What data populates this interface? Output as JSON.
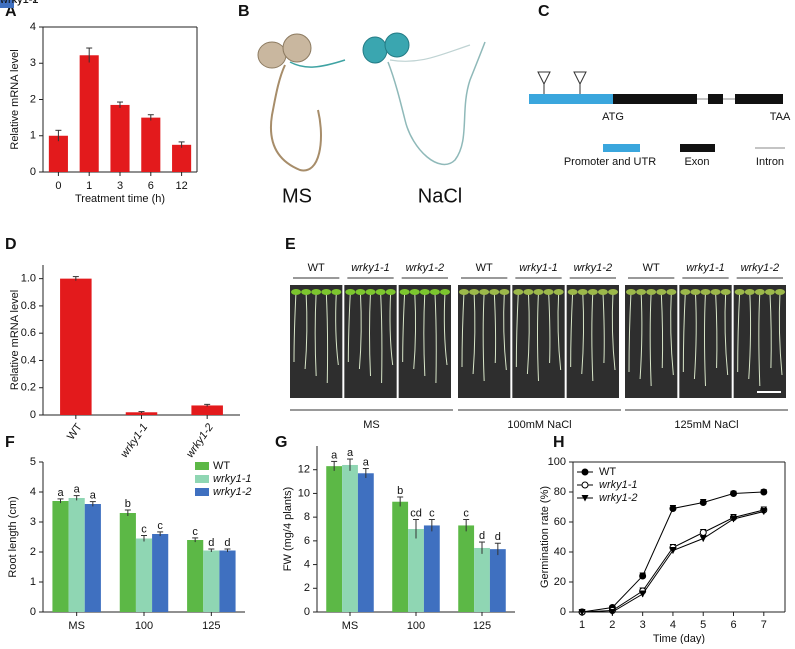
{
  "chart_data": [
    {
      "type": "bar",
      "label": "A",
      "x_label": "Treatment time (h)",
      "y_label": "Relative mRNA level",
      "categories": [
        "0",
        "1",
        "3",
        "6",
        "12"
      ],
      "values": [
        1.0,
        3.22,
        1.85,
        1.5,
        0.75
      ],
      "errors": [
        0.15,
        0.2,
        0.08,
        0.08,
        0.08
      ],
      "color": "#e31a1c",
      "ylim": [
        0,
        4
      ],
      "yticks": [
        0,
        1,
        2,
        3,
        4
      ]
    },
    {
      "type": "bar",
      "label": "D",
      "y_label": "Relative mRNA level",
      "italic_categories": true,
      "categories": [
        "WT",
        "wrky1-1",
        "wrky1-2"
      ],
      "values": [
        1.0,
        0.02,
        0.07
      ],
      "errors": [
        0.015,
        0.005,
        0.008
      ],
      "color": "#e31a1c",
      "ylim": [
        0,
        1.1
      ],
      "yticks": [
        0,
        0.2,
        0.4,
        0.6,
        0.8,
        {
          "value": 1,
          "label": "1.0"
        }
      ]
    },
    {
      "type": "bar",
      "label": "F",
      "y_label": "Root length (cm)",
      "italic_legend": true,
      "categories": [
        "MS",
        "100",
        "125"
      ],
      "ylim": [
        0,
        5
      ],
      "yticks": [
        0,
        1,
        2,
        3,
        4,
        5
      ],
      "series": [
        {
          "name": "WT",
          "color": "#5cb846",
          "values": [
            3.7,
            3.3,
            2.4
          ],
          "errors": [
            0.07,
            0.1,
            0.07
          ],
          "letters": [
            "a",
            "b",
            "c"
          ]
        },
        {
          "name": "wrky1-1",
          "color": "#8fd6b3",
          "values": [
            3.8,
            2.45,
            2.05
          ],
          "errors": [
            0.08,
            0.1,
            0.05
          ],
          "letters": [
            "a",
            "c",
            "d"
          ]
        },
        {
          "name": "wrky1-2",
          "color": "#3f70c0",
          "values": [
            3.6,
            2.6,
            2.05
          ],
          "errors": [
            0.08,
            0.07,
            0.05
          ],
          "letters": [
            "a",
            "c",
            "d"
          ]
        }
      ]
    },
    {
      "type": "bar",
      "label": "G",
      "y_label": "FW (mg/4 plants)",
      "categories": [
        "MS",
        "100",
        "125"
      ],
      "ylim": [
        0,
        14
      ],
      "yticks": [
        0,
        2,
        4,
        6,
        8,
        10,
        12
      ],
      "series": [
        {
          "name": "WT",
          "color": "#5cb846",
          "values": [
            12.3,
            9.3,
            7.3
          ],
          "errors": [
            0.4,
            0.4,
            0.5
          ],
          "letters": [
            "a",
            "b",
            "c"
          ]
        },
        {
          "name": "wrky1-1",
          "color": "#8fd6b3",
          "values": [
            12.4,
            7.0,
            5.4
          ],
          "errors": [
            0.5,
            0.8,
            0.5
          ],
          "letters": [
            "a",
            "cd",
            "d"
          ]
        },
        {
          "name": "wrky1-2",
          "color": "#3f70c0",
          "values": [
            11.7,
            7.3,
            5.3
          ],
          "errors": [
            0.4,
            0.5,
            0.5
          ],
          "letters": [
            "a",
            "c",
            "d"
          ]
        }
      ]
    },
    {
      "type": "line",
      "label": "H",
      "x_label": "Time (day)",
      "y_label": "Germination rate (%)",
      "italic_legend": true,
      "x": [
        1,
        2,
        3,
        4,
        5,
        6,
        7
      ],
      "xlim": [
        0.7,
        7.7
      ],
      "xticks": [
        1,
        2,
        3,
        4,
        5,
        6,
        7
      ],
      "ylim": [
        0,
        100
      ],
      "yticks": [
        0,
        20,
        40,
        60,
        80,
        100
      ],
      "series": [
        {
          "name": "WT",
          "color": "#000000",
          "marker": "filled-circle",
          "values": [
            0,
            3,
            24,
            69,
            73,
            79,
            80
          ],
          "errors": [
            0,
            1,
            2,
            2,
            2,
            1.5,
            1.5
          ]
        },
        {
          "name": "wrky1-1",
          "color": "#000000",
          "marker": "open-circle",
          "values": [
            0,
            1,
            14,
            43,
            53,
            63,
            68
          ],
          "errors": [
            0,
            1,
            2,
            2,
            2,
            2,
            2
          ]
        },
        {
          "name": "wrky1-2",
          "color": "#000000",
          "marker": "filled-triangle",
          "values": [
            0,
            0,
            12,
            41,
            49,
            62,
            67
          ],
          "errors": [
            0,
            1,
            2,
            2,
            2,
            2,
            2
          ]
        }
      ]
    }
  ],
  "panels": {
    "B": {
      "label": "B",
      "conditions": [
        "MS",
        "NaCl"
      ]
    },
    "C": {
      "label": "C",
      "markers": [
        "ATG",
        "TAA"
      ],
      "legend": [
        "Promoter and UTR",
        "Exon",
        "Intron"
      ]
    },
    "E": {
      "label": "E",
      "genotypes": [
        [
          "WT",
          "wrky1-1",
          "wrky1-2"
        ],
        [
          "WT",
          "wrky1-1",
          "wrky1-2"
        ],
        [
          "WT",
          "wrky1-1",
          "wrky1-2"
        ]
      ],
      "conditions": [
        "MS",
        "100mM NaCl",
        "125mM NaCl"
      ]
    }
  }
}
